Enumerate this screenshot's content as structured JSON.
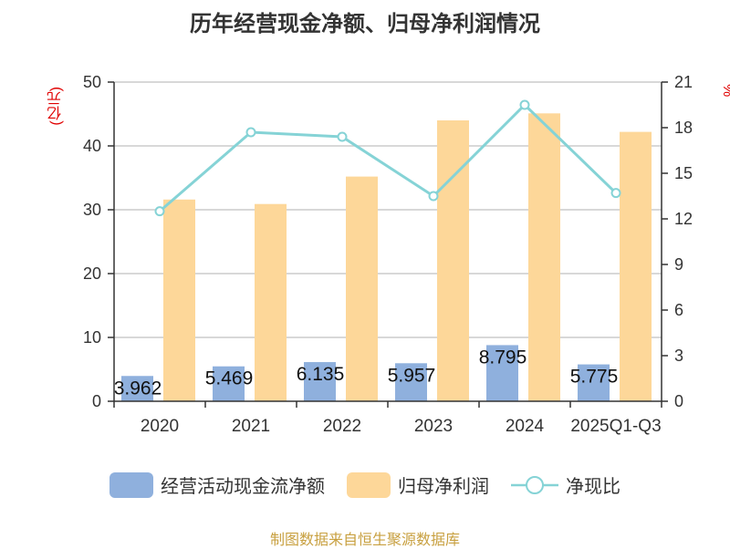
{
  "title": "历年经营现金净额、归母净利润情况",
  "left_unit": "(亿元)",
  "right_unit": "%",
  "source": "制图数据来自恒生聚源数据库",
  "legend": {
    "item1": "经营活动现金流净额",
    "item2": "归母净利润",
    "item3": "净现比"
  },
  "colors": {
    "bar1": "#8fb0dd",
    "bar2": "#fdd799",
    "line": "#85d3d6",
    "grid": "#cccccc",
    "axis": "#333333"
  },
  "chart_data": {
    "type": "bar+line",
    "title": "历年经营现金净额、归母净利润情况",
    "categories": [
      "2020",
      "2021",
      "2022",
      "2023",
      "2024",
      "2025Q1-Q3"
    ],
    "series": [
      {
        "name": "经营活动现金流净额",
        "type": "bar",
        "axis": "left",
        "values": [
          3.962,
          5.469,
          6.135,
          5.957,
          8.795,
          5.775
        ],
        "labels": [
          "3.962",
          "5.469",
          "6.135",
          "5.957",
          "8.795",
          "5.775"
        ]
      },
      {
        "name": "归母净利润",
        "type": "bar",
        "axis": "left",
        "values": [
          31.6,
          30.9,
          35.2,
          44.0,
          45.1,
          42.2
        ]
      },
      {
        "name": "净现比",
        "type": "line",
        "axis": "right",
        "values": [
          12.5,
          17.7,
          17.4,
          13.5,
          19.5,
          13.7
        ]
      }
    ],
    "y_left": {
      "min": 0,
      "max": 50,
      "ticks": [
        0,
        10,
        20,
        30,
        40,
        50
      ],
      "label": "(亿元)"
    },
    "y_right": {
      "min": 0,
      "max": 21,
      "ticks": [
        0,
        3,
        6,
        9,
        12,
        15,
        18,
        21
      ],
      "label": "%"
    },
    "grid": true,
    "legend_position": "bottom"
  }
}
